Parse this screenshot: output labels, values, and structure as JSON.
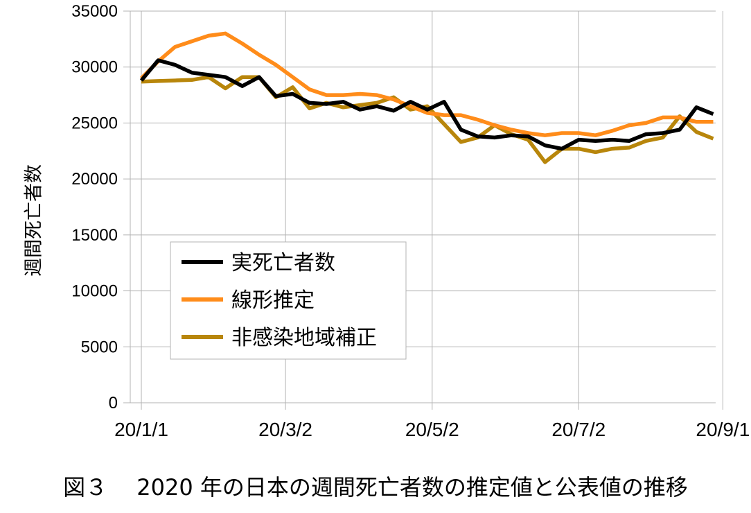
{
  "caption": "図３　 2020 年の日本の週間死亡者数の推定値と公表値の推移",
  "chart_data": {
    "type": "line",
    "ylabel": "週間死亡者数",
    "xlabel": "",
    "ylim": [
      0,
      35000
    ],
    "yticks": [
      0,
      5000,
      10000,
      15000,
      20000,
      25000,
      30000,
      35000
    ],
    "xtick_labels": [
      "20/1/1",
      "20/3/2",
      "20/5/2",
      "20/7/2",
      "20/9/1"
    ],
    "xtick_weeks": [
      0,
      8.57,
      17.29,
      26.0,
      34.57
    ],
    "grid": true,
    "legend_position": "center-left",
    "x": [
      "20/1/1",
      "20/1/8",
      "20/1/15",
      "20/1/22",
      "20/1/29",
      "20/2/5",
      "20/2/12",
      "20/2/19",
      "20/2/26",
      "20/3/4",
      "20/3/11",
      "20/3/18",
      "20/3/25",
      "20/4/1",
      "20/4/8",
      "20/4/15",
      "20/4/22",
      "20/4/29",
      "20/5/6",
      "20/5/13",
      "20/5/20",
      "20/5/27",
      "20/6/3",
      "20/6/10",
      "20/6/17",
      "20/6/24",
      "20/7/1",
      "20/7/8",
      "20/7/15",
      "20/7/22",
      "20/7/29",
      "20/8/5",
      "20/8/12",
      "20/8/19",
      "20/8/26"
    ],
    "series": [
      {
        "name": "実死亡者数",
        "color": "#000000",
        "values": [
          28800,
          30600,
          30200,
          29500,
          29300,
          29100,
          28300,
          29100,
          27400,
          27600,
          26800,
          26700,
          26900,
          26200,
          26500,
          26100,
          26900,
          26200,
          26900,
          24400,
          23800,
          23700,
          23900,
          23800,
          23000,
          22700,
          23500,
          23400,
          23500,
          23400,
          24000,
          24100,
          24400,
          26400,
          25800
        ]
      },
      {
        "name": "線形推定",
        "color": "#ff8c1a",
        "values": [
          29000,
          30500,
          31800,
          32300,
          32800,
          33000,
          32100,
          31100,
          30200,
          29100,
          28000,
          27500,
          27500,
          27600,
          27500,
          27100,
          26500,
          25900,
          25700,
          25700,
          25300,
          24800,
          24400,
          24100,
          23900,
          24100,
          24100,
          23900,
          24300,
          24800,
          25000,
          25500,
          25500,
          25100,
          25100
        ]
      },
      {
        "name": "非感染地域補正",
        "color": "#b8860b",
        "values": [
          28700,
          28750,
          28800,
          28850,
          29100,
          28100,
          29100,
          29100,
          27300,
          28200,
          26300,
          26800,
          26400,
          26600,
          26800,
          27300,
          26200,
          26500,
          24900,
          23300,
          23700,
          24800,
          24000,
          23500,
          21500,
          22700,
          22700,
          22400,
          22700,
          22800,
          23400,
          23700,
          25600,
          24200,
          23600
        ]
      }
    ]
  }
}
